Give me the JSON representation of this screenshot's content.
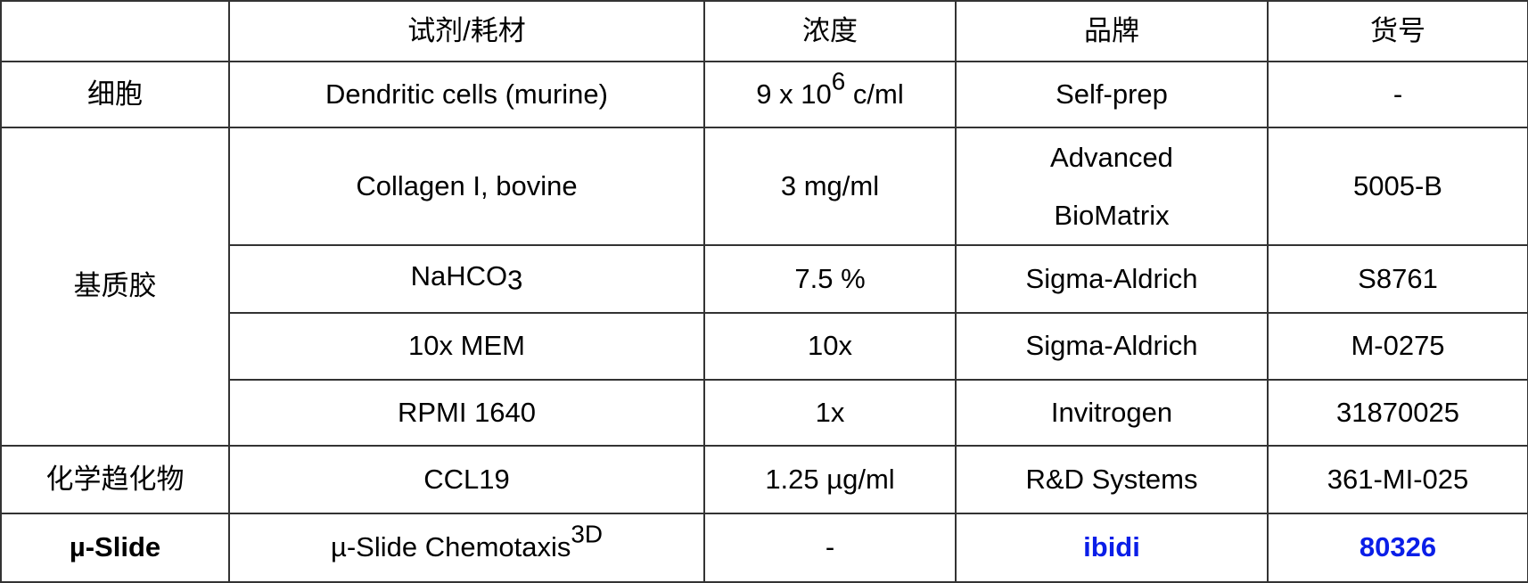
{
  "headers": [
    "",
    "试剂/耗材",
    "浓度",
    "品牌",
    "货号"
  ],
  "rows": {
    "cells": {
      "category": "细胞",
      "reagent": "Dendritic cells (murine)",
      "conc_base": "9 x 10",
      "conc_exp": "6",
      "conc_unit": " c/ml",
      "brand": "Self-prep",
      "catalog": "-"
    },
    "matrix_category": "基质胶",
    "collagen": {
      "reagent": "Collagen I, bovine",
      "conc": "3 mg/ml",
      "brand_line1": "Advanced",
      "brand_line2": "BioMatrix",
      "catalog": "5005-B"
    },
    "nahco3": {
      "reagent_base": "NaHCO",
      "reagent_sub": "3",
      "conc": "7.5 %",
      "brand": "Sigma-Aldrich",
      "catalog": "S8761"
    },
    "mem": {
      "reagent": "10x MEM",
      "conc": "10x",
      "brand": "Sigma-Aldrich",
      "catalog": "M-0275"
    },
    "rpmi": {
      "reagent": "RPMI 1640",
      "conc": "1x",
      "brand": "Invitrogen",
      "catalog": "31870025"
    },
    "chemo": {
      "category": "化学趋化物",
      "reagent": "CCL19",
      "conc": "1.25 µg/ml",
      "brand": "R&D Systems",
      "catalog": "361-MI-025"
    },
    "slide": {
      "category": "µ-Slide",
      "reagent": "µ-Slide Chemotaxis",
      "reagent_sup": "3D",
      "conc": "-",
      "brand": "ibidi",
      "catalog": "80326"
    }
  },
  "colors": {
    "link_blue": "#0a1ee8",
    "border": "#333333"
  }
}
